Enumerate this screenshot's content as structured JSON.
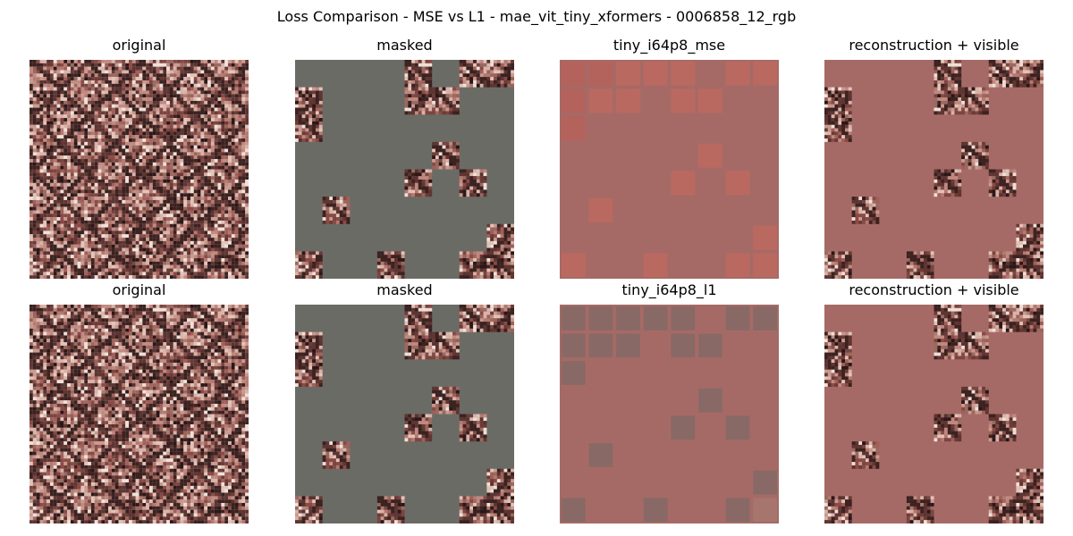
{
  "suptitle": "Loss Comparison - MSE vs L1 - mae_vit_tiny_xformers - 0006858_12_rgb",
  "rows": [
    {
      "panels": [
        {
          "title": "original",
          "kind": "original"
        },
        {
          "title": "masked",
          "kind": "masked"
        },
        {
          "title": "tiny_i64p8_mse",
          "kind": "recon_mse"
        },
        {
          "title": "reconstruction + visible",
          "kind": "recon_visible"
        }
      ]
    },
    {
      "panels": [
        {
          "title": "original",
          "kind": "original"
        },
        {
          "title": "masked",
          "kind": "masked"
        },
        {
          "title": "tiny_i64p8_l1",
          "kind": "recon_l1"
        },
        {
          "title": "reconstruction + visible",
          "kind": "recon_visible"
        }
      ]
    }
  ],
  "image": {
    "grid_size": 8,
    "visible_patches": [
      [
        0,
        4
      ],
      [
        0,
        6
      ],
      [
        0,
        7
      ],
      [
        1,
        0
      ],
      [
        1,
        4
      ],
      [
        1,
        5
      ],
      [
        2,
        0
      ],
      [
        3,
        5
      ],
      [
        4,
        4
      ],
      [
        4,
        6
      ],
      [
        5,
        1
      ],
      [
        6,
        7
      ],
      [
        7,
        0
      ],
      [
        7,
        3
      ],
      [
        7,
        6
      ],
      [
        7,
        7
      ]
    ],
    "mask_color": "#6b6b66",
    "recon_background": "#a66a66"
  }
}
